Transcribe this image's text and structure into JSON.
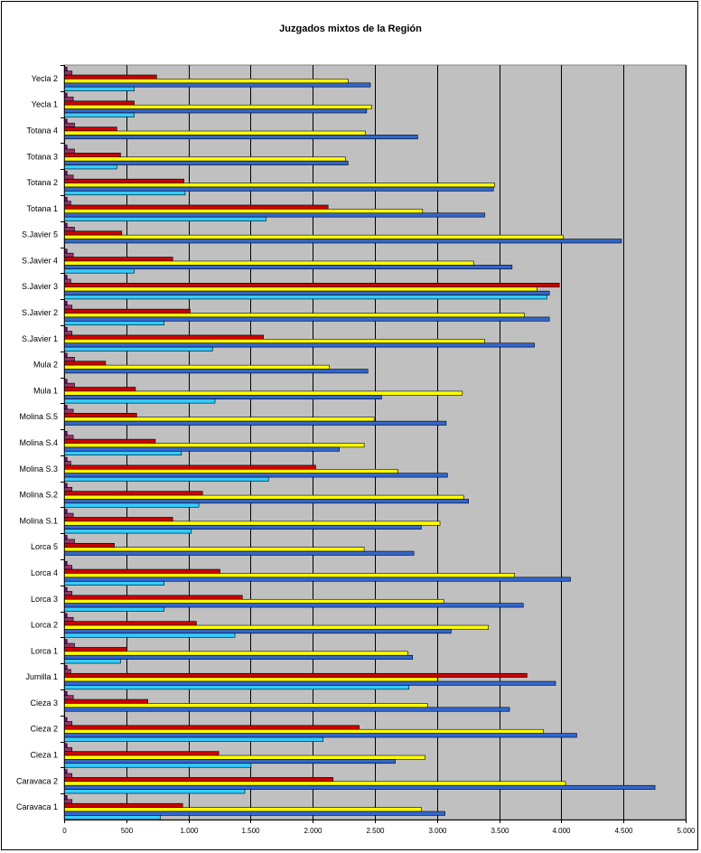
{
  "chart_data": {
    "type": "bar",
    "orientation": "horizontal",
    "title": "Juzgados mixtos de la Región",
    "xlabel": "",
    "ylabel": "",
    "xlim": [
      0,
      5000
    ],
    "x_ticks": [
      "0",
      "500",
      "1.000",
      "1.500",
      "2.000",
      "2.500",
      "3.000",
      "3.500",
      "4.000",
      "4.500",
      "5.000"
    ],
    "grid": true,
    "legend": "none",
    "plot_background": "#c0c0c0",
    "categories": [
      "Yecla 2",
      "Yecla  1",
      "Totana 4",
      "Totana 3",
      "Totana 2",
      "Totana 1",
      "S.Javier 5",
      "S.Javier 4",
      "S.Javier 3",
      "S.Javier 2",
      "S.Javier 1",
      "Mula 2",
      "Mula 1",
      "Molina S.5",
      "Molina S.4",
      "Molina S.3",
      "Molina S.2",
      "Molina S.1",
      "Lorca 5",
      "Lorca 4",
      "Lorca 3",
      "Lorca 2",
      "Lorca 1",
      "Jumilla 1",
      "Cieza 3",
      "Cieza 2",
      "Cieza 1",
      "Caravaca 2",
      "Caravaca 1"
    ],
    "series": [
      {
        "color": "#800080",
        "values": [
          20,
          20,
          20,
          20,
          20,
          20,
          20,
          20,
          20,
          20,
          20,
          20,
          20,
          20,
          20,
          20,
          20,
          20,
          20,
          20,
          20,
          20,
          20,
          20,
          20,
          20,
          20,
          20,
          20
        ]
      },
      {
        "color": "#993366",
        "values": [
          60,
          70,
          80,
          80,
          70,
          50,
          80,
          70,
          50,
          60,
          60,
          80,
          80,
          70,
          70,
          50,
          60,
          70,
          80,
          60,
          60,
          70,
          80,
          50,
          70,
          60,
          60,
          60,
          60
        ]
      },
      {
        "color": "#cc0000",
        "values": [
          740,
          560,
          420,
          450,
          960,
          2120,
          460,
          870,
          3980,
          1010,
          1600,
          330,
          570,
          580,
          730,
          2020,
          1110,
          870,
          400,
          1250,
          1430,
          1060,
          500,
          3720,
          670,
          2370,
          1240,
          2160,
          950
        ]
      },
      {
        "color": "#ffff00",
        "values": [
          2280,
          2470,
          2420,
          2260,
          3460,
          2880,
          4010,
          3290,
          3800,
          3700,
          3380,
          2130,
          3200,
          2490,
          2410,
          2680,
          3210,
          3020,
          2410,
          3620,
          3050,
          3410,
          2760,
          3000,
          2920,
          3850,
          2900,
          4030,
          2870
        ]
      },
      {
        "color": "#3366cc",
        "values": [
          2460,
          2430,
          2840,
          2280,
          3450,
          3380,
          4480,
          3600,
          3900,
          3900,
          3780,
          2440,
          2550,
          3070,
          2210,
          3080,
          3250,
          2870,
          2810,
          4070,
          3690,
          3110,
          2800,
          3950,
          3580,
          4120,
          2660,
          4750,
          3060
        ]
      },
      {
        "color": "#33ccff",
        "values": [
          560,
          560,
          0,
          420,
          970,
          1620,
          0,
          560,
          3880,
          800,
          1190,
          0,
          1210,
          0,
          940,
          1640,
          1080,
          1020,
          0,
          800,
          800,
          1370,
          450,
          2770,
          0,
          2080,
          1500,
          1450,
          770
        ]
      }
    ]
  }
}
